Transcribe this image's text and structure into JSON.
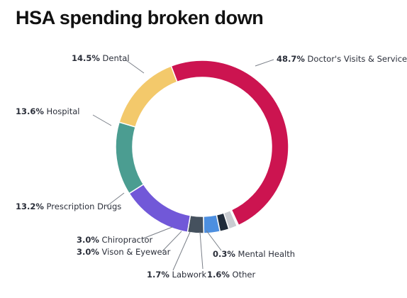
{
  "page": {
    "title": "HSA spending broken down"
  },
  "chart_data": {
    "type": "pie",
    "donut": true,
    "title": "HSA spending broken down",
    "legend": "none",
    "slices": [
      {
        "label": "Doctor's Visits & Services",
        "pct_text": "48.7%",
        "value": 48.7,
        "color": "#cc1450"
      },
      {
        "label": "Mental Health",
        "pct_text": "0.3%",
        "value": 0.3,
        "color": "#f2f2f2"
      },
      {
        "label": "Other",
        "pct_text": "1.6%",
        "value": 1.6,
        "color": "#c9ccd1"
      },
      {
        "label": "Labwork",
        "pct_text": "1.7%",
        "value": 1.7,
        "color": "#1f2b3a"
      },
      {
        "label": "Vison & Eyewear",
        "pct_text": "3.0%",
        "value": 3.0,
        "color": "#4d8fe0"
      },
      {
        "label": "Chiropractor",
        "pct_text": "3.0%",
        "value": 3.0,
        "color": "#45515e"
      },
      {
        "label": "Prescription Drugs",
        "pct_text": "13.2%",
        "value": 13.2,
        "color": "#7158d8"
      },
      {
        "label": "Hospital",
        "pct_text": "13.6%",
        "value": 13.6,
        "color": "#4b9d91"
      },
      {
        "label": "Dental",
        "pct_text": "14.5%",
        "value": 14.5,
        "color": "#f3c96b"
      }
    ]
  }
}
